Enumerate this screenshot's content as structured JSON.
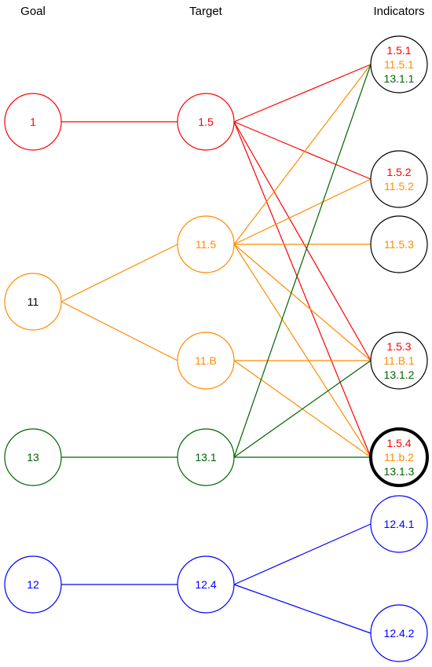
{
  "headers": {
    "goal": "Goal",
    "target": "Target",
    "indicators": "Indicators"
  },
  "colors": {
    "red": "#ff0000",
    "orange": "#ff8c00",
    "green": "#006400",
    "blue": "#0000ff",
    "black": "#000000"
  },
  "goals": [
    {
      "id": "g1",
      "label": "1",
      "color": "red"
    },
    {
      "id": "g11",
      "label": "11",
      "color": "orange",
      "textColor": "black"
    },
    {
      "id": "g13",
      "label": "13",
      "color": "green"
    },
    {
      "id": "g12",
      "label": "12",
      "color": "blue"
    }
  ],
  "targets": [
    {
      "id": "t1_5",
      "label": "1.5",
      "color": "red"
    },
    {
      "id": "t11_5",
      "label": "11.5",
      "color": "orange"
    },
    {
      "id": "t11_B",
      "label": "11.B",
      "color": "orange"
    },
    {
      "id": "t13_1",
      "label": "13.1",
      "color": "green"
    },
    {
      "id": "t12_4",
      "label": "12.4",
      "color": "blue"
    }
  ],
  "indicators": [
    {
      "id": "i1",
      "color": "black",
      "highlight": false,
      "lines": [
        {
          "text": "1.5.1",
          "color": "red"
        },
        {
          "text": "11.5.1",
          "color": "orange"
        },
        {
          "text": "13.1.1",
          "color": "green"
        }
      ]
    },
    {
      "id": "i2",
      "color": "black",
      "highlight": false,
      "lines": [
        {
          "text": "1.5.2",
          "color": "red"
        },
        {
          "text": "11.5.2",
          "color": "orange"
        }
      ]
    },
    {
      "id": "i3",
      "color": "black",
      "highlight": false,
      "lines": [
        {
          "text": "11.5.3",
          "color": "orange"
        }
      ]
    },
    {
      "id": "i4",
      "color": "black",
      "highlight": false,
      "lines": [
        {
          "text": "1.5.3",
          "color": "red"
        },
        {
          "text": "11.B.1",
          "color": "orange"
        },
        {
          "text": "13.1.2",
          "color": "green"
        }
      ]
    },
    {
      "id": "i5",
      "color": "black",
      "highlight": true,
      "lines": [
        {
          "text": "1.5.4",
          "color": "red"
        },
        {
          "text": "11.b.2",
          "color": "orange"
        },
        {
          "text": "13.1.3",
          "color": "green"
        }
      ]
    },
    {
      "id": "i6",
      "color": "blue",
      "highlight": false,
      "lines": [
        {
          "text": "12.4.1",
          "color": "blue"
        }
      ]
    },
    {
      "id": "i7",
      "color": "blue",
      "highlight": false,
      "lines": [
        {
          "text": "12.4.2",
          "color": "blue"
        }
      ]
    }
  ],
  "edges": [
    {
      "from": "g1",
      "to": "t1_5",
      "color": "red"
    },
    {
      "from": "g11",
      "to": "t11_5",
      "color": "orange"
    },
    {
      "from": "g11",
      "to": "t11_B",
      "color": "orange"
    },
    {
      "from": "g13",
      "to": "t13_1",
      "color": "green"
    },
    {
      "from": "g12",
      "to": "t12_4",
      "color": "blue"
    },
    {
      "from": "t1_5",
      "to": "i1",
      "color": "red"
    },
    {
      "from": "t1_5",
      "to": "i2",
      "color": "red"
    },
    {
      "from": "t1_5",
      "to": "i4",
      "color": "red"
    },
    {
      "from": "t1_5",
      "to": "i5",
      "color": "red"
    },
    {
      "from": "t11_5",
      "to": "i1",
      "color": "orange"
    },
    {
      "from": "t11_5",
      "to": "i2",
      "color": "orange"
    },
    {
      "from": "t11_5",
      "to": "i3",
      "color": "orange"
    },
    {
      "from": "t11_5",
      "to": "i4",
      "color": "orange"
    },
    {
      "from": "t11_5",
      "to": "i5",
      "color": "orange"
    },
    {
      "from": "t11_B",
      "to": "i4",
      "color": "orange"
    },
    {
      "from": "t11_B",
      "to": "i5",
      "color": "orange"
    },
    {
      "from": "t13_1",
      "to": "i1",
      "color": "green"
    },
    {
      "from": "t13_1",
      "to": "i4",
      "color": "green"
    },
    {
      "from": "t13_1",
      "to": "i5",
      "color": "green"
    },
    {
      "from": "t12_4",
      "to": "i6",
      "color": "blue"
    },
    {
      "from": "t12_4",
      "to": "i7",
      "color": "blue"
    }
  ]
}
